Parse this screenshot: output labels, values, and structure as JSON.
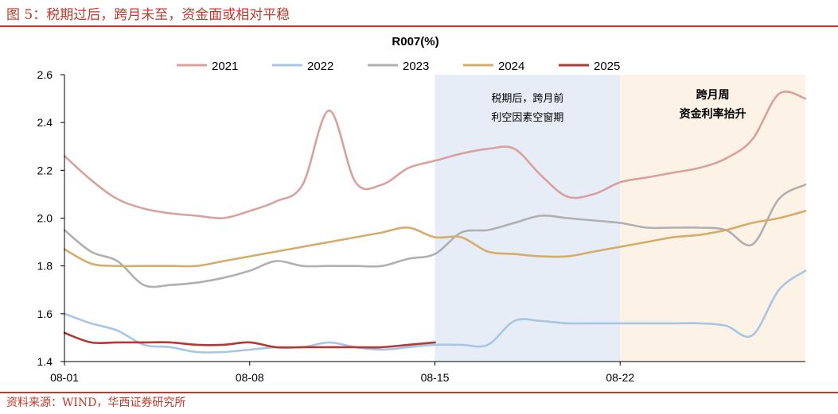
{
  "figure": {
    "title": "图 5：税期过后，跨月未至，资金面或相对平稳",
    "source": "资料来源：WIND，华西证券研究所"
  },
  "colors": {
    "brand": "#c0392b",
    "axis": "#000000"
  },
  "chart_data": {
    "type": "line",
    "title": "R007(%)",
    "xlabel": "",
    "ylabel": "",
    "ylim": [
      1.4,
      2.6
    ],
    "yticks": [
      "1.4",
      "1.6",
      "1.8",
      "2.0",
      "2.2",
      "2.4",
      "2.6"
    ],
    "xlim": [
      "08-01",
      "08-29"
    ],
    "xticks": [
      "08-01",
      "08-08",
      "08-15",
      "08-22"
    ],
    "legend_position": "top",
    "grid": false,
    "shaded_regions": [
      {
        "from": "08-15",
        "to": "08-22",
        "label_lines": [
          "税期后，跨月前",
          "利空因素空窗期"
        ],
        "color": "#e6edf7"
      },
      {
        "from": "08-22",
        "to": "08-29",
        "label_lines": [
          "跨月周",
          "资金利率抬升"
        ],
        "color": "#fdf2e6"
      }
    ],
    "series": [
      {
        "name": "2021",
        "color": "#d9a19d",
        "x": [
          "08-01",
          "08-02",
          "08-03",
          "08-04",
          "08-05",
          "08-06",
          "08-07",
          "08-08",
          "08-09",
          "08-10",
          "08-11",
          "08-12",
          "08-13",
          "08-14",
          "08-15",
          "08-16",
          "08-17",
          "08-18",
          "08-19",
          "08-20",
          "08-21",
          "08-22",
          "08-23",
          "08-24",
          "08-25",
          "08-26",
          "08-27",
          "08-28",
          "08-29"
        ],
        "values": [
          2.26,
          2.16,
          2.08,
          2.04,
          2.02,
          2.01,
          2.0,
          2.03,
          2.07,
          2.14,
          2.45,
          2.15,
          2.14,
          2.21,
          2.24,
          2.27,
          2.29,
          2.29,
          2.18,
          2.09,
          2.1,
          2.15,
          2.17,
          2.19,
          2.21,
          2.25,
          2.33,
          2.52,
          2.5
        ]
      },
      {
        "name": "2022",
        "color": "#a8c6e4",
        "x": [
          "08-01",
          "08-02",
          "08-03",
          "08-04",
          "08-05",
          "08-06",
          "08-07",
          "08-08",
          "08-09",
          "08-10",
          "08-11",
          "08-12",
          "08-13",
          "08-14",
          "08-15",
          "08-16",
          "08-17",
          "08-18",
          "08-19",
          "08-20",
          "08-21",
          "08-22",
          "08-23",
          "08-24",
          "08-25",
          "08-26",
          "08-27",
          "08-28",
          "08-29"
        ],
        "values": [
          1.6,
          1.56,
          1.53,
          1.47,
          1.46,
          1.44,
          1.44,
          1.45,
          1.46,
          1.46,
          1.48,
          1.46,
          1.45,
          1.46,
          1.47,
          1.47,
          1.47,
          1.57,
          1.57,
          1.56,
          1.56,
          1.56,
          1.56,
          1.56,
          1.56,
          1.55,
          1.51,
          1.7,
          1.78
        ]
      },
      {
        "name": "2023",
        "color": "#b0b0b0",
        "x": [
          "08-01",
          "08-02",
          "08-03",
          "08-04",
          "08-05",
          "08-06",
          "08-07",
          "08-08",
          "08-09",
          "08-10",
          "08-11",
          "08-12",
          "08-13",
          "08-14",
          "08-15",
          "08-16",
          "08-17",
          "08-18",
          "08-19",
          "08-20",
          "08-21",
          "08-22",
          "08-23",
          "08-24",
          "08-25",
          "08-26",
          "08-27",
          "08-28",
          "08-29"
        ],
        "values": [
          1.95,
          1.86,
          1.82,
          1.72,
          1.72,
          1.73,
          1.75,
          1.78,
          1.82,
          1.8,
          1.8,
          1.8,
          1.8,
          1.83,
          1.85,
          1.94,
          1.95,
          1.98,
          2.01,
          2.0,
          1.99,
          1.98,
          1.96,
          1.96,
          1.96,
          1.95,
          1.89,
          2.08,
          2.14
        ]
      },
      {
        "name": "2024",
        "color": "#d4ad6a",
        "x": [
          "08-01",
          "08-02",
          "08-03",
          "08-04",
          "08-05",
          "08-06",
          "08-07",
          "08-08",
          "08-09",
          "08-10",
          "08-11",
          "08-12",
          "08-13",
          "08-14",
          "08-15",
          "08-16",
          "08-17",
          "08-18",
          "08-19",
          "08-20",
          "08-21",
          "08-22",
          "08-23",
          "08-24",
          "08-25",
          "08-26",
          "08-27",
          "08-28",
          "08-29"
        ],
        "values": [
          1.87,
          1.81,
          1.8,
          1.8,
          1.8,
          1.8,
          1.82,
          1.84,
          1.86,
          1.88,
          1.9,
          1.92,
          1.94,
          1.96,
          1.92,
          1.92,
          1.86,
          1.85,
          1.84,
          1.84,
          1.86,
          1.88,
          1.9,
          1.92,
          1.93,
          1.95,
          1.98,
          2.0,
          2.03
        ]
      },
      {
        "name": "2025",
        "color": "#b03a35",
        "x": [
          "08-01",
          "08-02",
          "08-03",
          "08-04",
          "08-05",
          "08-06",
          "08-07",
          "08-08",
          "08-09",
          "08-10",
          "08-11",
          "08-12",
          "08-13",
          "08-14",
          "08-15"
        ],
        "values": [
          1.52,
          1.48,
          1.48,
          1.48,
          1.48,
          1.47,
          1.47,
          1.48,
          1.46,
          1.46,
          1.46,
          1.46,
          1.46,
          1.47,
          1.48
        ]
      }
    ]
  }
}
